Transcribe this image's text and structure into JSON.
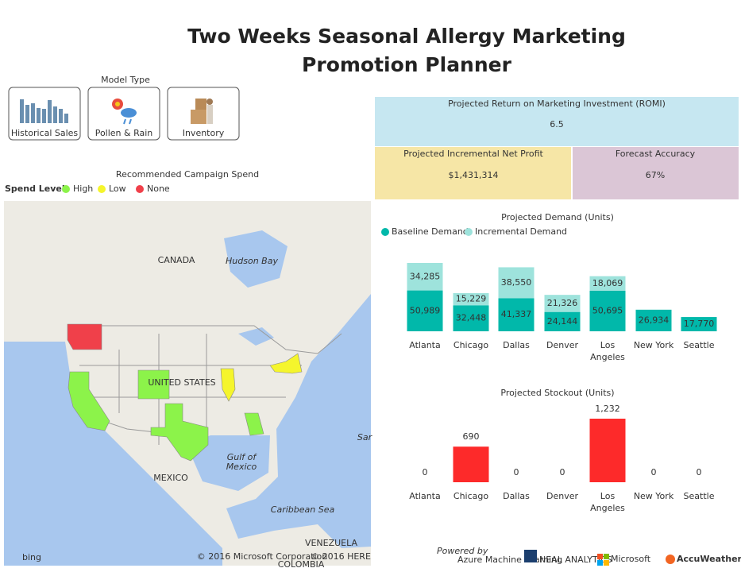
{
  "title": "Two Weeks Seasonal Allergy Marketing Promotion Planner",
  "model_type": {
    "label": "Model Type",
    "buttons": [
      "Historical Sales",
      "Pollen & Rain",
      "Inventory"
    ]
  },
  "map": {
    "title": "Recommended Campaign Spend",
    "legend_title": "Spend Level",
    "legend": [
      {
        "name": "High",
        "color": "#8cf34a"
      },
      {
        "name": "Low",
        "color": "#f5f52c"
      },
      {
        "name": "None",
        "color": "#f0404a"
      }
    ],
    "labels": [
      "CANADA",
      "Hudson Bay",
      "UNITED STATES",
      "Gulf of Mexico",
      "MEXICO",
      "Caribbean Sea",
      "VENEZUELA",
      "COLOMBIA",
      "Sar"
    ],
    "attribution": [
      "© 2016 Microsoft Corporation",
      "© 2016 HERE"
    ],
    "provider": "bing"
  },
  "kpis": [
    {
      "label": "Projected Return on Marketing Investment (ROMI)",
      "value": 6.5
    },
    {
      "label": "Projected Incremental Net Profit",
      "value": 1431314,
      "value_label": "$1,431,314"
    },
    {
      "label": "Forecast Accuracy",
      "value": 67,
      "value_label": "67%"
    }
  ],
  "chart_data": [
    {
      "type": "bar",
      "stacked": true,
      "title": "Projected Demand (Units)",
      "categories": [
        "Atlanta",
        "Chicago",
        "Dallas",
        "Denver",
        "Los Angeles",
        "New York",
        "Seattle"
      ],
      "series": [
        {
          "name": "Baseline Demand",
          "color": "#01b8aa",
          "values": [
            50989,
            32448,
            41337,
            24144,
            50695,
            26934,
            17770
          ],
          "value_labels": [
            "50,989",
            "32,448",
            "41,337",
            "24,144",
            "50,695",
            "26,934",
            "17,770"
          ]
        },
        {
          "name": "Incremental Demand",
          "color": "#9ee3dc",
          "values": [
            34285,
            15229,
            38550,
            21326,
            18069,
            null,
            null
          ],
          "value_labels": [
            "34,285",
            "15,229",
            "38,550",
            "21,326",
            "18,069",
            null,
            null
          ]
        }
      ]
    },
    {
      "type": "bar",
      "title": "Projected Stockout (Units)",
      "categories": [
        "Atlanta",
        "Chicago",
        "Dallas",
        "Denver",
        "Los Angeles",
        "New York",
        "Seattle"
      ],
      "values": [
        0,
        690,
        0,
        0,
        1232,
        0,
        0
      ],
      "value_labels": [
        null,
        null,
        null,
        null,
        "1,232",
        null,
        null
      ],
      "color": "#fd2a2a"
    }
  ],
  "footer": {
    "powered_by": "Powered by",
    "logos": [
      "Azure Machine Learning",
      "NEAL ANALYTICS",
      "Microsoft",
      "AccuWeather"
    ]
  }
}
